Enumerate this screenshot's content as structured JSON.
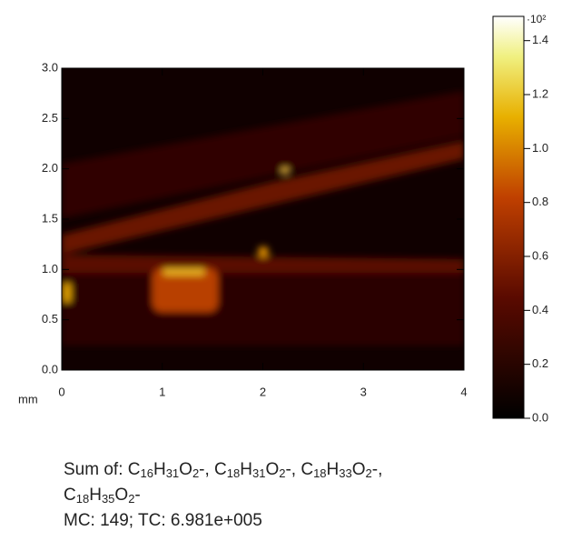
{
  "chart_data": {
    "type": "heatmap",
    "x_label": "mm",
    "xlim": [
      0,
      4
    ],
    "xticks": [
      0,
      1,
      2,
      3,
      4
    ],
    "ylim": [
      0,
      3
    ],
    "yticks": [
      {
        "value": 0,
        "label": "0.0"
      },
      0.5,
      {
        "value": 1,
        "label": "1.0"
      },
      1.5,
      {
        "value": 2,
        "label": "2.0"
      },
      2.5,
      {
        "value": 3,
        "label": "3.0"
      }
    ],
    "colorbar": {
      "multiplier": "·10²",
      "clim": [
        0,
        1.49
      ],
      "ticks": [
        {
          "value": 0,
          "label": "0.0"
        },
        0.2,
        0.4,
        0.6,
        0.8,
        {
          "value": 1,
          "label": "1.0"
        },
        1.2,
        1.4
      ]
    },
    "caption": [
      "Sum of: C16H31O2-, C18H31O2-, C18H33O2-,",
      "C18H35O2-",
      "MC:   149; TC: 6.981e+005"
    ]
  }
}
